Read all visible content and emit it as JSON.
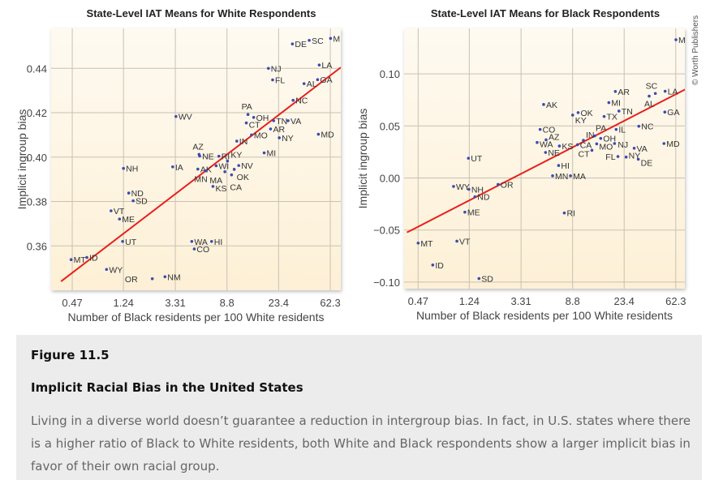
{
  "credit": "© Worth Publishers",
  "caption": {
    "figure_number": "Figure 11.5",
    "title": "Implicit Racial Bias in the United States",
    "body": "Living in a diverse world doesn’t guarantee a reduction in intergroup bias. In fact, in U.S. states where there is a higher ratio of Black to White residents, both White and Black respondents show a larger implicit bias in favor of their own racial group."
  },
  "colors": {
    "point": "#3a4bb0",
    "trend_line": "#e8201e",
    "plot_background": "#fdf3de",
    "grid": "#c9c1b3",
    "caption_background": "#ececec"
  },
  "chart_data": [
    {
      "type": "scatter",
      "title": "State-Level IAT Means for White Respondents",
      "xlabel": "Number of Black residents per 100 White residents",
      "ylabel": "Implicit ingroup bias",
      "x_scale": "log",
      "xticks": [
        0.47,
        1.24,
        3.31,
        8.8,
        23.4,
        62.3
      ],
      "xtick_labels": [
        "0.47",
        "1.24",
        "3.31",
        "8.8",
        "23.4",
        "62.3"
      ],
      "yticks": [
        0.36,
        0.38,
        0.4,
        0.42,
        0.44
      ],
      "ytick_labels": [
        "0.36",
        "0.38",
        "0.40",
        "0.42",
        "0.44"
      ],
      "xlim": [
        0.315,
        76
      ],
      "ylim": [
        0.34,
        0.458
      ],
      "grid": true,
      "trend_line": [
        [
          0.38,
          0.344
        ],
        [
          76,
          0.4404
        ]
      ],
      "points": [
        [
          "M",
          62.6,
          0.4535
        ],
        [
          "SC",
          41.8,
          0.4526
        ],
        [
          "DE",
          30.4,
          0.451
        ],
        [
          "NJ",
          19.3,
          0.44
        ],
        [
          "LA",
          50.5,
          0.4415
        ],
        [
          "FL",
          20.9,
          0.4348
        ],
        [
          "AL",
          37.9,
          0.4331
        ],
        [
          "GA",
          49.0,
          0.4349
        ],
        [
          "NC",
          30.8,
          0.4256
        ],
        [
          "PA",
          13.1,
          0.4192
        ],
        [
          "OH",
          14.6,
          0.4179
        ],
        [
          "CT",
          12.7,
          0.4154
        ],
        [
          "TN",
          21.3,
          0.4164
        ],
        [
          "VA",
          28.0,
          0.4164
        ],
        [
          "AR",
          20.1,
          0.4127
        ],
        [
          "MO",
          14.0,
          0.41
        ],
        [
          "NY",
          23.7,
          0.4087
        ],
        [
          "MD",
          49.7,
          0.4103
        ],
        [
          "IN",
          10.6,
          0.4072
        ],
        [
          "MI",
          17.8,
          0.4019
        ],
        [
          "AZ",
          5.19,
          0.4012
        ],
        [
          "NE",
          5.25,
          0.4005
        ],
        [
          "RI",
          7.55,
          0.4004
        ],
        [
          "KY",
          8.89,
          0.3982
        ],
        [
          "WI",
          7.17,
          0.3961
        ],
        [
          "NV",
          11.0,
          0.3962
        ],
        [
          "OK",
          10.1,
          0.3945
        ],
        [
          "MA",
          8.46,
          0.3934
        ],
        [
          "CA",
          9.6,
          0.392
        ],
        [
          "AK",
          5.07,
          0.3946
        ],
        [
          "MN",
          5.87,
          0.3938
        ],
        [
          "KS",
          6.75,
          0.3868
        ],
        [
          "WV",
          3.35,
          0.4183
        ],
        [
          "IA",
          3.15,
          0.3956
        ],
        [
          "NH",
          1.24,
          0.3949
        ],
        [
          "ND",
          1.37,
          0.3838
        ],
        [
          "SD",
          1.49,
          0.3803
        ],
        [
          "VT",
          0.98,
          0.3758
        ],
        [
          "ME",
          1.15,
          0.3721
        ],
        [
          "UT",
          1.22,
          0.362
        ],
        [
          "WA",
          4.52,
          0.362
        ],
        [
          "HI",
          6.58,
          0.362
        ],
        [
          "CO",
          4.74,
          0.3586
        ],
        [
          "MT",
          0.46,
          0.3538
        ],
        [
          "ID",
          0.62,
          0.3548
        ],
        [
          "WY",
          0.9,
          0.3494
        ],
        [
          "OR",
          2.14,
          0.3452
        ],
        [
          "NM",
          2.72,
          0.3461
        ]
      ]
    },
    {
      "type": "scatter",
      "title": "State-Level IAT Means for Black Respondents",
      "xlabel": "Number of Black residents per 100 White residents",
      "ylabel": "Implicit ingroup bias",
      "x_scale": "log",
      "xticks": [
        0.47,
        1.24,
        3.31,
        8.8,
        23.4,
        62.3
      ],
      "xtick_labels": [
        "0.47",
        "1.24",
        "3.31",
        "8.8",
        "23.4",
        "62.3"
      ],
      "yticks": [
        -0.1,
        -0.05,
        0.0,
        0.05,
        0.1
      ],
      "ytick_labels": [
        "−0.10",
        "−0.05",
        "0.00",
        "0.05",
        "0.10"
      ],
      "xlim": [
        0.36,
        74
      ],
      "ylim": [
        -0.1063,
        0.1437
      ],
      "grid": true,
      "trend_line": [
        [
          0.38,
          -0.0523
        ],
        [
          76.4,
          0.0857
        ]
      ],
      "points": [
        [
          "M",
          62.5,
          0.1328
        ],
        [
          "AR",
          19.8,
          0.0831
        ],
        [
          "SC",
          42.3,
          0.0812
        ],
        [
          "AL",
          37.6,
          0.0786
        ],
        [
          "LA",
          50.9,
          0.0833
        ],
        [
          "MI",
          17.5,
          0.0724
        ],
        [
          "AK",
          5.08,
          0.0706
        ],
        [
          "TN",
          21.2,
          0.0643
        ],
        [
          "GA",
          50.6,
          0.0633
        ],
        [
          "OK",
          9.77,
          0.0628
        ],
        [
          "KY",
          8.81,
          0.0604
        ],
        [
          "TX",
          16.0,
          0.0591
        ],
        [
          "CO",
          4.75,
          0.0466
        ],
        [
          "IL",
          20.1,
          0.0466
        ],
        [
          "NC",
          30.9,
          0.0497
        ],
        [
          "PA",
          13.4,
          0.0404
        ],
        [
          "OH",
          15.0,
          0.038
        ],
        [
          "AZ",
          5.32,
          0.0367
        ],
        [
          "IN",
          10.8,
          0.0362
        ],
        [
          "WA",
          4.49,
          0.0341
        ],
        [
          "MO",
          13.9,
          0.0328
        ],
        [
          "NJ",
          19.5,
          0.0331
        ],
        [
          "MD",
          49.8,
          0.0331
        ],
        [
          "KS",
          6.85,
          0.0307
        ],
        [
          "CA",
          9.66,
          0.032
        ],
        [
          "VA",
          28.3,
          0.0286
        ],
        [
          "CT",
          12.7,
          0.0266
        ],
        [
          "NE",
          5.27,
          0.0245
        ],
        [
          "FL",
          20.8,
          0.0206
        ],
        [
          "NY",
          24.3,
          0.0201
        ],
        [
          "DE",
          30.6,
          0.018
        ],
        [
          "UT",
          1.22,
          0.019
        ],
        [
          "HI",
          6.75,
          0.012
        ],
        [
          "MN",
          6.02,
          0.0021
        ],
        [
          "MA",
          8.46,
          0.0021
        ],
        [
          "OR",
          2.14,
          -0.0062
        ],
        [
          "WY",
          0.92,
          -0.0081
        ],
        [
          "NH",
          1.23,
          -0.0109
        ],
        [
          "ND",
          1.38,
          -0.018
        ],
        [
          "ME",
          1.14,
          -0.0328
        ],
        [
          "RI",
          7.52,
          -0.0336
        ],
        [
          "MT",
          0.47,
          -0.0625
        ],
        [
          "VT",
          0.98,
          -0.0607
        ],
        [
          "ID",
          0.62,
          -0.0836
        ],
        [
          "SD",
          1.49,
          -0.0966
        ]
      ]
    }
  ]
}
